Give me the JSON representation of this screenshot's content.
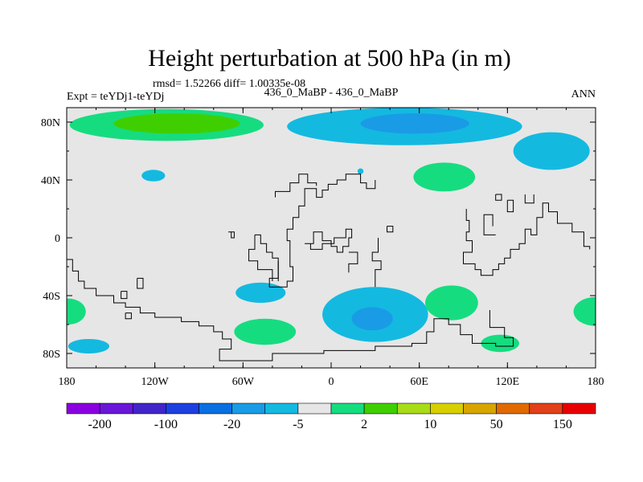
{
  "chart_data": {
    "type": "heatmap",
    "title": "Height perturbation at 500 hPa (in m)",
    "stats_text": "rmsd= 1.52266 diff= 1.00335e-08",
    "left_label": "Expt = teYDj1-teYDj",
    "center_label": "436_0_MaBP - 436_0_MaBP",
    "right_label": "ANN",
    "xlim": [
      -180,
      180
    ],
    "ylim": [
      -90,
      90
    ],
    "x_ticks": [
      {
        "value": -180,
        "label": "180"
      },
      {
        "value": -120,
        "label": "120W"
      },
      {
        "value": -60,
        "label": "60W"
      },
      {
        "value": 0,
        "label": "0"
      },
      {
        "value": 60,
        "label": "60E"
      },
      {
        "value": 120,
        "label": "120E"
      },
      {
        "value": 180,
        "label": "180"
      }
    ],
    "y_ticks": [
      {
        "value": 80,
        "label": "80N"
      },
      {
        "value": 40,
        "label": "40N"
      },
      {
        "value": 0,
        "label": "0"
      },
      {
        "value": -40,
        "label": "40S"
      },
      {
        "value": -80,
        "label": "80S"
      }
    ],
    "background_color": "#e6e6e6",
    "colorbar": {
      "colors": [
        "#8b00e0",
        "#6a16d9",
        "#4125c9",
        "#1c3fe0",
        "#0a6fe0",
        "#1a9be6",
        "#14b9e0",
        "#e6e6e6",
        "#16dc80",
        "#3fcf00",
        "#a8dc18",
        "#d8cf00",
        "#d8a400",
        "#e06a00",
        "#e0401a",
        "#e80000"
      ],
      "labels": [
        {
          "text": "-200",
          "boundary": 1
        },
        {
          "text": "-100",
          "boundary": 3
        },
        {
          "text": "-20",
          "boundary": 5
        },
        {
          "text": "-5",
          "boundary": 7
        },
        {
          "text": "2",
          "boundary": 9
        },
        {
          "text": "10",
          "boundary": 11
        },
        {
          "text": "50",
          "boundary": 13
        },
        {
          "text": "150",
          "boundary": 15
        }
      ]
    },
    "anomalies": [
      {
        "name": "arctic-west-positive",
        "lon": -112,
        "lat": 78,
        "rx": 66,
        "ry": 11,
        "color": "#16dc80",
        "inner": {
          "lon": -105,
          "lat": 79,
          "rx": 43,
          "ry": 7,
          "color": "#3fcf00"
        }
      },
      {
        "name": "arctic-east-negative",
        "lon": 50,
        "lat": 77,
        "rx": 80,
        "ry": 13,
        "color": "#14b9e0",
        "inner": {
          "lon": 57,
          "lat": 79,
          "rx": 37,
          "ry": 7,
          "color": "#1a9be6"
        }
      },
      {
        "name": "east-siberia-negative",
        "lon": 150,
        "lat": 60,
        "rx": 26,
        "ry": 13,
        "color": "#14b9e0"
      },
      {
        "name": "north-pacific-negative",
        "lon": -121,
        "lat": 43,
        "rx": 8,
        "ry": 4,
        "color": "#14b9e0"
      },
      {
        "name": "atlantic-small-negative",
        "lon": 20,
        "lat": 46,
        "rx": 2,
        "ry": 2,
        "color": "#14b9e0"
      },
      {
        "name": "central-asia-positive",
        "lon": 77,
        "lat": 42,
        "rx": 21,
        "ry": 10,
        "color": "#16dc80"
      },
      {
        "name": "south-atlantic-negative",
        "lon": -48,
        "lat": -38,
        "rx": 17,
        "ry": 7,
        "color": "#14b9e0"
      },
      {
        "name": "south-africa-negative",
        "lon": 30,
        "lat": -53,
        "rx": 36,
        "ry": 19,
        "color": "#14b9e0",
        "inner": {
          "lon": 28,
          "lat": -56,
          "rx": 14,
          "ry": 8,
          "color": "#1a9be6"
        }
      },
      {
        "name": "west-pacific-positive-a",
        "lon": -179,
        "lat": -51,
        "rx": 12,
        "ry": 9,
        "color": "#16dc80"
      },
      {
        "name": "west-pacific-negative",
        "lon": -165,
        "lat": -75,
        "rx": 14,
        "ry": 5,
        "color": "#14b9e0"
      },
      {
        "name": "south-atlantic-positive",
        "lon": -45,
        "lat": -65,
        "rx": 21,
        "ry": 9,
        "color": "#16dc80"
      },
      {
        "name": "indian-ocean-positive",
        "lon": 82,
        "lat": -45,
        "rx": 18,
        "ry": 12,
        "color": "#16dc80"
      },
      {
        "name": "australia-south-positive",
        "lon": 115,
        "lat": -73,
        "rx": 13,
        "ry": 6,
        "color": "#16dc80"
      },
      {
        "name": "east-pacific-positive",
        "lon": 180,
        "lat": -51,
        "rx": 15,
        "ry": 10,
        "color": "#16dc80"
      }
    ],
    "coastlines": [
      [
        [
          -180,
          -15
        ],
        [
          -176,
          -15
        ],
        [
          -176,
          -23
        ],
        [
          -172,
          -23
        ],
        [
          -172,
          -30
        ],
        [
          -168,
          -30
        ],
        [
          -168,
          -35
        ],
        [
          -160,
          -35
        ],
        [
          -160,
          -40
        ],
        [
          -148,
          -40
        ],
        [
          -148,
          -45
        ],
        [
          -140,
          -45
        ],
        [
          -140,
          -48
        ],
        [
          -130,
          -48
        ],
        [
          -130,
          -52
        ],
        [
          -120,
          -52
        ],
        [
          -120,
          -55
        ],
        [
          -102,
          -55
        ],
        [
          -102,
          -58
        ],
        [
          -90,
          -58
        ],
        [
          -90,
          -61
        ],
        [
          -80,
          -61
        ],
        [
          -80,
          -65
        ],
        [
          -74,
          -65
        ],
        [
          -74,
          -70
        ],
        [
          -68,
          -70
        ],
        [
          -68,
          -77
        ],
        [
          -76,
          -77
        ],
        [
          -76,
          -85
        ],
        [
          -40,
          -85
        ],
        [
          -40,
          -80
        ],
        [
          -5,
          -80
        ],
        [
          -5,
          -78
        ],
        [
          30,
          -78
        ],
        [
          30,
          -75
        ],
        [
          55,
          -75
        ],
        [
          55,
          -73
        ],
        [
          65,
          -73
        ],
        [
          65,
          -65
        ],
        [
          70,
          -65
        ],
        [
          70,
          -56
        ],
        [
          80,
          -56
        ],
        [
          80,
          -60
        ],
        [
          88,
          -60
        ],
        [
          88,
          -67
        ],
        [
          96,
          -67
        ],
        [
          96,
          -73
        ],
        [
          112,
          -73
        ],
        [
          112,
          -75
        ],
        [
          124,
          -75
        ],
        [
          124,
          -69
        ],
        [
          118,
          -69
        ],
        [
          118,
          -62
        ],
        [
          108,
          -62
        ],
        [
          108,
          -50
        ]
      ],
      [
        [
          -132,
          -28
        ],
        [
          -128,
          -28
        ],
        [
          -128,
          -35
        ],
        [
          -132,
          -35
        ],
        [
          -132,
          -28
        ]
      ],
      [
        [
          -143,
          -37
        ],
        [
          -139,
          -37
        ],
        [
          -139,
          -42
        ],
        [
          -143,
          -42
        ],
        [
          -143,
          -37
        ]
      ],
      [
        [
          -52,
          2
        ],
        [
          -48,
          2
        ],
        [
          -48,
          -4
        ],
        [
          -44,
          -4
        ],
        [
          -44,
          -10
        ],
        [
          -40,
          -10
        ],
        [
          -40,
          -14
        ],
        [
          -36,
          -14
        ],
        [
          -36,
          -28
        ],
        [
          -42,
          -28
        ],
        [
          -42,
          -34
        ],
        [
          -30,
          -34
        ],
        [
          -30,
          -30
        ],
        [
          -26,
          -30
        ],
        [
          -26,
          -20
        ],
        [
          -28,
          -20
        ],
        [
          -28,
          -2
        ],
        [
          -30,
          -2
        ],
        [
          -30,
          6
        ],
        [
          -26,
          6
        ],
        [
          -26,
          14
        ],
        [
          -22,
          14
        ],
        [
          -22,
          22
        ],
        [
          -18,
          22
        ],
        [
          -18,
          34
        ],
        [
          -10,
          34
        ],
        [
          -10,
          28
        ],
        [
          -6,
          28
        ],
        [
          -6,
          33
        ],
        [
          -2,
          33
        ],
        [
          -2,
          37
        ],
        [
          4,
          37
        ],
        [
          4,
          40
        ],
        [
          10,
          40
        ],
        [
          10,
          44
        ],
        [
          20,
          44
        ],
        [
          20,
          38
        ],
        [
          24,
          38
        ],
        [
          24,
          34
        ],
        [
          30,
          34
        ],
        [
          30,
          40
        ]
      ],
      [
        [
          -52,
          2
        ],
        [
          -52,
          -8
        ],
        [
          -56,
          -8
        ],
        [
          -56,
          -16
        ],
        [
          -50,
          -16
        ],
        [
          -50,
          -22
        ],
        [
          -40,
          -22
        ],
        [
          -40,
          -30
        ]
      ],
      [
        [
          -70,
          4
        ],
        [
          -66,
          4
        ],
        [
          -66,
          0
        ],
        [
          -68,
          0
        ],
        [
          -68,
          4
        ]
      ],
      [
        [
          -18,
          -4
        ],
        [
          -12,
          -4
        ],
        [
          -12,
          4
        ],
        [
          -6,
          4
        ],
        [
          -6,
          -2
        ],
        [
          0,
          -2
        ],
        [
          0,
          -6
        ],
        [
          4,
          -6
        ],
        [
          4,
          -10
        ],
        [
          8,
          -10
        ],
        [
          8,
          -6
        ],
        [
          12,
          -6
        ],
        [
          12,
          0
        ],
        [
          14,
          0
        ],
        [
          14,
          6
        ],
        [
          10,
          6
        ],
        [
          10,
          0
        ],
        [
          2,
          0
        ],
        [
          2,
          -4
        ],
        [
          -6,
          -4
        ],
        [
          -6,
          -8
        ],
        [
          -14,
          -8
        ],
        [
          -14,
          -4
        ],
        [
          -18,
          -4
        ]
      ],
      [
        [
          12,
          -24
        ],
        [
          12,
          -18
        ],
        [
          18,
          -18
        ],
        [
          18,
          -10
        ],
        [
          12,
          -10
        ]
      ],
      [
        [
          30,
          -34
        ],
        [
          30,
          -22
        ],
        [
          34,
          -22
        ],
        [
          34,
          -16
        ],
        [
          28,
          -16
        ],
        [
          28,
          -10
        ],
        [
          32,
          -10
        ],
        [
          32,
          0
        ]
      ],
      [
        [
          92,
          20
        ],
        [
          92,
          12
        ],
        [
          94,
          12
        ],
        [
          94,
          4
        ],
        [
          92,
          4
        ],
        [
          92,
          -2
        ],
        [
          96,
          -2
        ],
        [
          96,
          -10
        ],
        [
          90,
          -10
        ],
        [
          90,
          -18
        ],
        [
          98,
          -18
        ],
        [
          98,
          -22
        ],
        [
          102,
          -22
        ],
        [
          102,
          -26
        ],
        [
          110,
          -26
        ],
        [
          110,
          -22
        ],
        [
          114,
          -22
        ],
        [
          114,
          -18
        ],
        [
          118,
          -18
        ],
        [
          118,
          -14
        ],
        [
          122,
          -14
        ],
        [
          122,
          -8
        ],
        [
          128,
          -8
        ],
        [
          128,
          -4
        ],
        [
          132,
          -4
        ],
        [
          132,
          6
        ],
        [
          136,
          6
        ],
        [
          136,
          2
        ],
        [
          140,
          2
        ],
        [
          140,
          14
        ],
        [
          144,
          14
        ],
        [
          144,
          24
        ],
        [
          148,
          24
        ],
        [
          148,
          18
        ],
        [
          154,
          18
        ],
        [
          154,
          10
        ],
        [
          164,
          10
        ],
        [
          164,
          4
        ],
        [
          172,
          4
        ],
        [
          172,
          -6
        ],
        [
          176,
          -6
        ],
        [
          176,
          -8
        ]
      ],
      [
        [
          110,
          8
        ],
        [
          110,
          16
        ],
        [
          104,
          16
        ],
        [
          104,
          2
        ],
        [
          112,
          2
        ]
      ],
      [
        [
          120,
          26
        ],
        [
          120,
          18
        ],
        [
          124,
          18
        ],
        [
          124,
          26
        ],
        [
          120,
          26
        ]
      ],
      [
        [
          112,
          30
        ],
        [
          112,
          26
        ],
        [
          116,
          26
        ],
        [
          116,
          30
        ],
        [
          112,
          30
        ]
      ],
      [
        [
          132,
          30
        ],
        [
          132,
          24
        ],
        [
          138,
          24
        ],
        [
          138,
          30
        ]
      ],
      [
        [
          -38,
          28
        ],
        [
          -38,
          32
        ],
        [
          -28,
          32
        ],
        [
          -28,
          38
        ],
        [
          -22,
          38
        ],
        [
          -22,
          44
        ],
        [
          -16,
          44
        ],
        [
          -16,
          38
        ],
        [
          -10,
          38
        ],
        [
          -10,
          36
        ]
      ],
      [
        [
          -36,
          -16
        ],
        [
          -36,
          -30
        ]
      ],
      [
        [
          -140,
          -52
        ],
        [
          -140,
          -56
        ],
        [
          -136,
          -56
        ],
        [
          -136,
          -52
        ],
        [
          -140,
          -52
        ]
      ],
      [
        [
          38,
          8
        ],
        [
          38,
          4
        ],
        [
          42,
          4
        ],
        [
          42,
          8
        ],
        [
          38,
          8
        ]
      ]
    ]
  }
}
